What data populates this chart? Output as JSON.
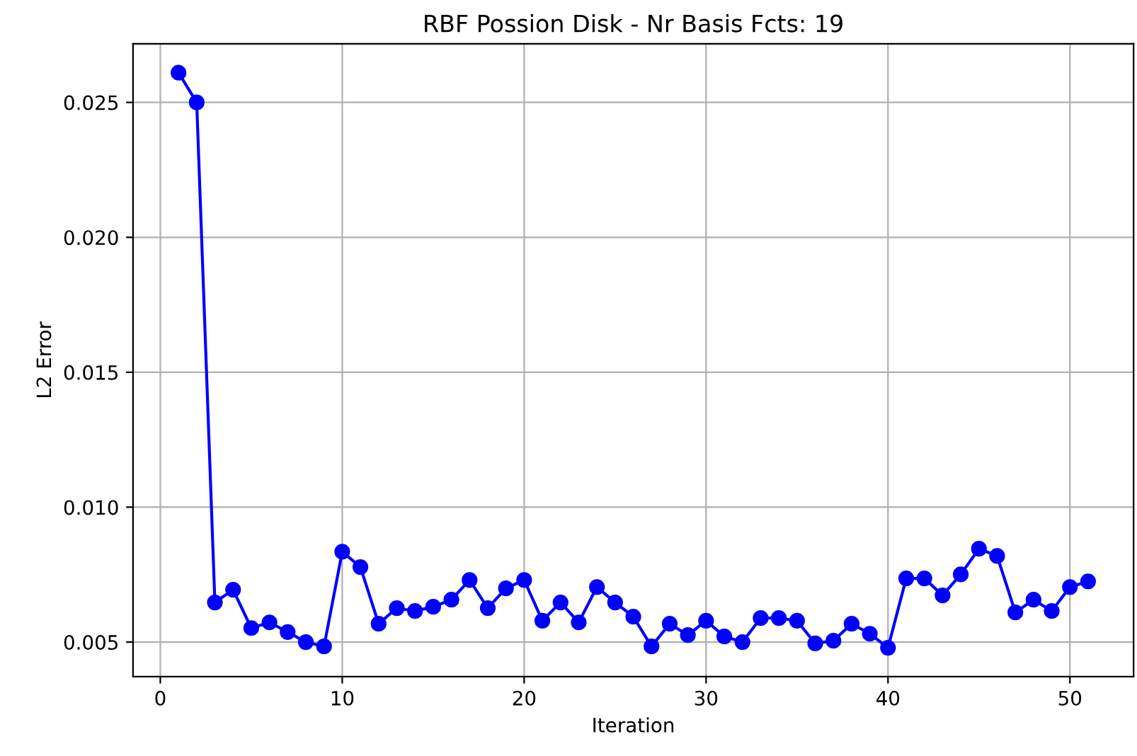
{
  "chart_data": {
    "type": "line",
    "title": "RBF Possion Disk - Nr Basis Fcts: 19",
    "xlabel": "Iteration",
    "ylabel": "L2 Error",
    "x": [
      1,
      2,
      3,
      4,
      5,
      6,
      7,
      8,
      9,
      10,
      11,
      12,
      13,
      14,
      15,
      16,
      17,
      18,
      19,
      20,
      21,
      22,
      23,
      24,
      25,
      26,
      27,
      28,
      29,
      30,
      31,
      32,
      33,
      34,
      35,
      36,
      37,
      38,
      39,
      40,
      41,
      42,
      43,
      44,
      45,
      46,
      47,
      48,
      49,
      50,
      51
    ],
    "series": [
      {
        "color": "#0000ff",
        "values": [
          0.0261,
          0.025,
          0.00647,
          0.00694,
          0.00552,
          0.00573,
          0.00537,
          0.005,
          0.00484,
          0.00835,
          0.00778,
          0.00568,
          0.00626,
          0.00615,
          0.00631,
          0.00657,
          0.0073,
          0.00626,
          0.00699,
          0.0073,
          0.00579,
          0.00647,
          0.00573,
          0.00704,
          0.00647,
          0.00594,
          0.00484,
          0.00568,
          0.00526,
          0.00579,
          0.00521,
          0.005,
          0.00589,
          0.00589,
          0.00579,
          0.00495,
          0.00505,
          0.00568,
          0.00531,
          0.00479,
          0.00736,
          0.00736,
          0.00673,
          0.00751,
          0.00846,
          0.00819,
          0.0061,
          0.00657,
          0.00615,
          0.00704,
          0.00725
        ]
      }
    ],
    "xlim": [
      -1.5,
      53.5
    ],
    "ylim": [
      0.00372,
      0.02717
    ],
    "xticks": [
      0,
      10,
      20,
      30,
      40,
      50
    ],
    "yticks": [
      {
        "value": 0.005,
        "label": "0.005"
      },
      {
        "value": 0.01,
        "label": "0.010"
      },
      {
        "value": 0.015,
        "label": "0.015"
      },
      {
        "value": 0.02,
        "label": "0.020"
      },
      {
        "value": 0.025,
        "label": "0.025"
      }
    ],
    "grid": true,
    "marker": "circle",
    "line_style": "solid"
  }
}
